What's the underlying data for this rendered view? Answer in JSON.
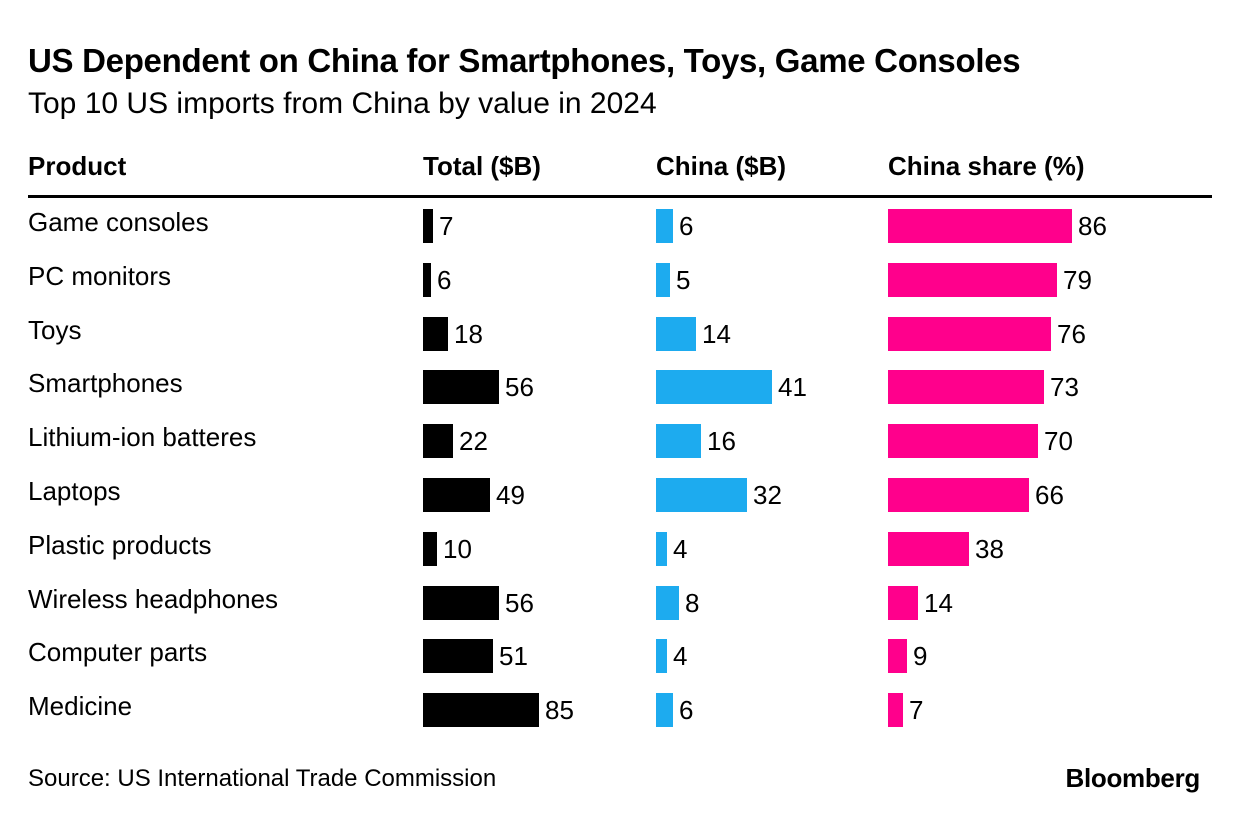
{
  "title": "US Dependent on China for Smartphones, Toys, Game Consoles",
  "subtitle": "Top 10 US imports from China by value in 2024",
  "source": "Source: US International Trade Commission",
  "brand": "Bloomberg",
  "colors": {
    "total": "#000000",
    "china": "#1DABEF",
    "share": "#FF008C"
  },
  "chart_data": {
    "type": "bar",
    "orientation": "horizontal",
    "layout": "table of bar columns",
    "columns": [
      "Product",
      "Total ($B)",
      "China ($B)",
      "China share (%)"
    ],
    "categories": [
      "Game consoles",
      "PC monitors",
      "Toys",
      "Smartphones",
      "Lithium-ion batteres",
      "Laptops",
      "Plastic products",
      "Wireless headphones",
      "Computer parts",
      "Medicine"
    ],
    "series": [
      {
        "name": "Total ($B)",
        "color": "#000000",
        "values": [
          7,
          6,
          18,
          56,
          22,
          49,
          10,
          56,
          51,
          85
        ]
      },
      {
        "name": "China ($B)",
        "color": "#1DABEF",
        "values": [
          6,
          5,
          14,
          41,
          16,
          32,
          4,
          8,
          4,
          6
        ]
      },
      {
        "name": "China share (%)",
        "color": "#FF008C",
        "values": [
          86,
          79,
          76,
          73,
          70,
          66,
          38,
          14,
          9,
          7
        ]
      }
    ],
    "data_labels": true,
    "grid": false,
    "legend": "none"
  }
}
